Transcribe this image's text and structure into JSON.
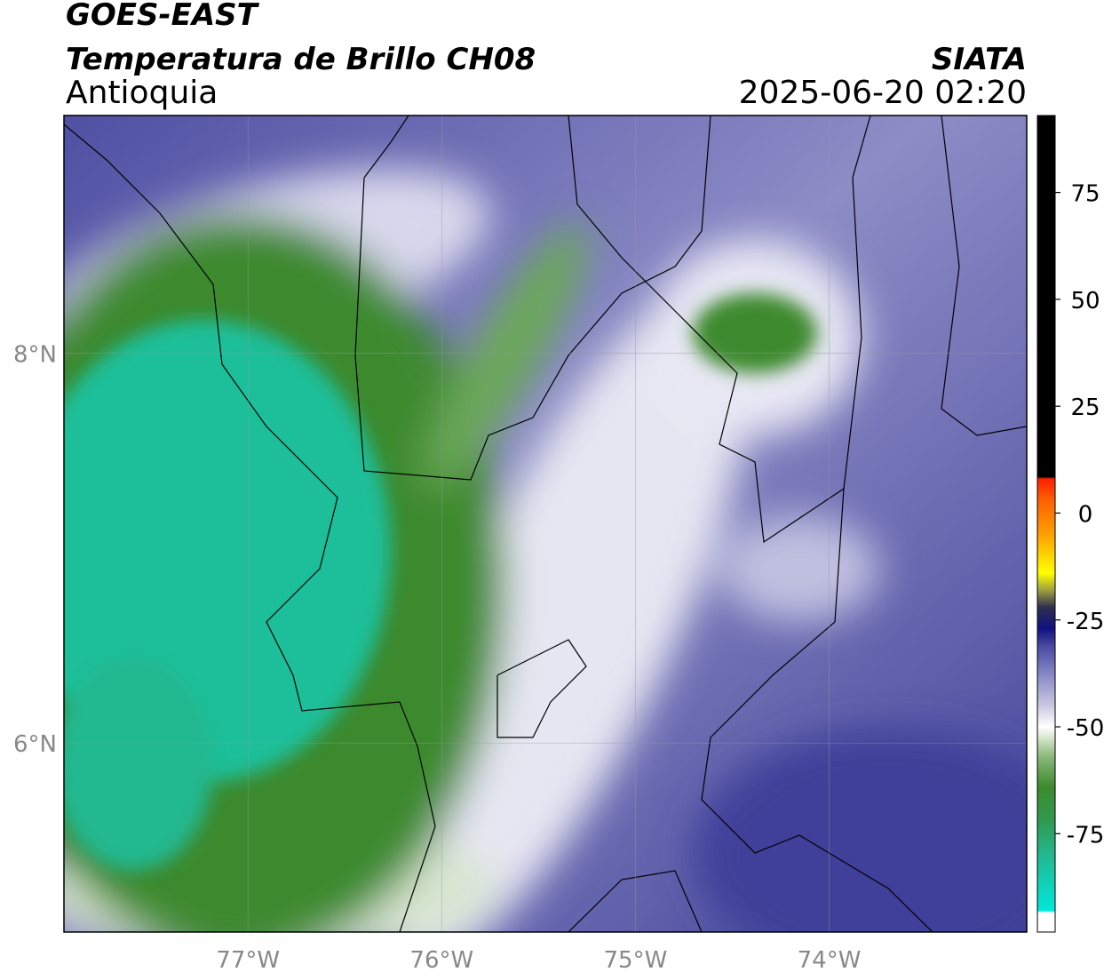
{
  "header": {
    "title": "GOES-EAST",
    "subtitle": "Temperatura de Brillo CH08",
    "region": "Antioquia",
    "source": "SIATA",
    "timestamp": "2025-06-20 02:20"
  },
  "map": {
    "lon_range": [
      -77.95,
      -72.98
    ],
    "lat_range": [
      5.03,
      9.22
    ],
    "lon_ticks": [
      {
        "value": -77,
        "label": "77°W"
      },
      {
        "value": -76,
        "label": "76°W"
      },
      {
        "value": -75,
        "label": "75°W"
      },
      {
        "value": -74,
        "label": "74°W"
      }
    ],
    "lat_ticks": [
      {
        "value": 8,
        "label": "8°N"
      },
      {
        "value": 6,
        "label": "6°N"
      }
    ],
    "grid": true
  },
  "colorbar": {
    "range": [
      -98,
      93
    ],
    "ticks": [
      75,
      50,
      25,
      0,
      -25,
      -50,
      -75
    ],
    "stops": [
      {
        "value": -98,
        "color": "#ffffff"
      },
      {
        "value": -93.5,
        "color": "#ffffff"
      },
      {
        "value": -93,
        "color": "#00e8dc"
      },
      {
        "value": -80,
        "color": "#22b890"
      },
      {
        "value": -72,
        "color": "#2f9a50"
      },
      {
        "value": -64,
        "color": "#3d8a2e"
      },
      {
        "value": -57,
        "color": "#8ab87a"
      },
      {
        "value": -52,
        "color": "#e0ecd8"
      },
      {
        "value": -50,
        "color": "#ffffff"
      },
      {
        "value": -45,
        "color": "#c8c8e0"
      },
      {
        "value": -38,
        "color": "#8a8ac8"
      },
      {
        "value": -31,
        "color": "#4848a0"
      },
      {
        "value": -27,
        "color": "#101080"
      },
      {
        "value": -22,
        "color": "#303050"
      },
      {
        "value": -18,
        "color": "#a0a040"
      },
      {
        "value": -14,
        "color": "#ffff00"
      },
      {
        "value": -5,
        "color": "#ffa000"
      },
      {
        "value": 3,
        "color": "#ff6000"
      },
      {
        "value": 8,
        "color": "#ff2000"
      },
      {
        "value": 8.5,
        "color": "#000000"
      },
      {
        "value": 93,
        "color": "#000000"
      }
    ]
  }
}
